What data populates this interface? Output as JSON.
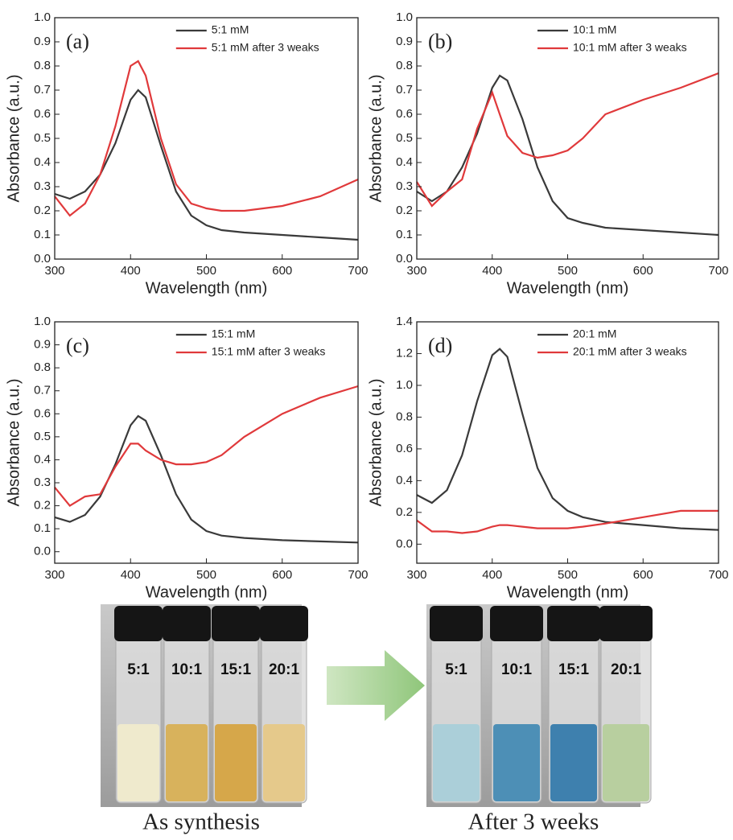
{
  "chart_data": [
    {
      "type": "line",
      "panel_label": "(a)",
      "x_label": "Wavelength (nm)",
      "y_label": "Absorbance (a.u.)",
      "x": [
        300,
        320,
        340,
        360,
        380,
        400,
        410,
        420,
        440,
        460,
        480,
        500,
        520,
        550,
        600,
        650,
        700
      ],
      "xlim": [
        300,
        700
      ],
      "xticks": [
        300,
        400,
        500,
        600,
        700
      ],
      "ylim": [
        0,
        1
      ],
      "yticks": [
        {
          "value": 0,
          "label": "0.0"
        },
        0.1,
        0.2,
        0.3,
        0.4,
        0.5,
        0.6,
        0.7,
        0.8,
        0.9,
        {
          "value": 1,
          "label": "1.0"
        }
      ],
      "series": [
        {
          "name": "5:1 mM",
          "color": "#3a3a3a",
          "values": [
            0.27,
            0.25,
            0.28,
            0.35,
            0.48,
            0.66,
            0.7,
            0.67,
            0.47,
            0.28,
            0.18,
            0.14,
            0.12,
            0.11,
            0.1,
            0.09,
            0.08
          ]
        },
        {
          "name": "5:1 mM after 3 weaks",
          "color": "#e0393b",
          "values": [
            0.26,
            0.18,
            0.23,
            0.35,
            0.55,
            0.8,
            0.82,
            0.76,
            0.5,
            0.31,
            0.23,
            0.21,
            0.2,
            0.2,
            0.22,
            0.26,
            0.33
          ]
        }
      ]
    },
    {
      "type": "line",
      "panel_label": "(b)",
      "x_label": "Wavelength (nm)",
      "y_label": "Absorbance (a.u.)",
      "x": [
        300,
        320,
        340,
        360,
        380,
        400,
        410,
        420,
        440,
        460,
        480,
        500,
        520,
        550,
        600,
        650,
        700
      ],
      "xlim": [
        300,
        700
      ],
      "xticks": [
        300,
        400,
        500,
        600,
        700
      ],
      "ylim": [
        0,
        1
      ],
      "yticks": [
        {
          "value": 0,
          "label": "0.0"
        },
        0.1,
        0.2,
        0.3,
        0.4,
        0.5,
        0.6,
        0.7,
        0.8,
        0.9,
        {
          "value": 1,
          "label": "1.0"
        }
      ],
      "series": [
        {
          "name": "10:1 mM",
          "color": "#3a3a3a",
          "values": [
            0.28,
            0.24,
            0.28,
            0.38,
            0.52,
            0.71,
            0.76,
            0.74,
            0.58,
            0.38,
            0.24,
            0.17,
            0.15,
            0.13,
            0.12,
            0.11,
            0.1
          ]
        },
        {
          "name": "10:1 mM after 3 weaks",
          "color": "#e0393b",
          "values": [
            0.32,
            0.22,
            0.28,
            0.33,
            0.54,
            0.69,
            0.6,
            0.51,
            0.44,
            0.42,
            0.43,
            0.45,
            0.5,
            0.6,
            0.66,
            0.71,
            0.77
          ]
        }
      ]
    },
    {
      "type": "line",
      "panel_label": "(c)",
      "x_label": "Wavelength (nm)",
      "y_label": "Absorbance (a.u.)",
      "x": [
        300,
        320,
        340,
        360,
        380,
        400,
        410,
        420,
        440,
        460,
        480,
        500,
        520,
        550,
        600,
        650,
        700
      ],
      "xlim": [
        300,
        700
      ],
      "xticks": [
        300,
        400,
        500,
        600,
        700
      ],
      "ylim": [
        -0.05,
        1
      ],
      "yticks": [
        {
          "value": 0,
          "label": "0.0"
        },
        0.1,
        0.2,
        0.3,
        0.4,
        0.5,
        0.6,
        0.7,
        0.8,
        0.9,
        {
          "value": 1,
          "label": "1.0"
        }
      ],
      "series": [
        {
          "name": "15:1 mM",
          "color": "#3a3a3a",
          "values": [
            0.15,
            0.13,
            0.16,
            0.24,
            0.38,
            0.55,
            0.59,
            0.57,
            0.42,
            0.25,
            0.14,
            0.09,
            0.07,
            0.06,
            0.05,
            0.045,
            0.04
          ]
        },
        {
          "name": "15:1 mM after 3 weaks",
          "color": "#e0393b",
          "values": [
            0.28,
            0.2,
            0.24,
            0.25,
            0.37,
            0.47,
            0.47,
            0.44,
            0.4,
            0.38,
            0.38,
            0.39,
            0.42,
            0.5,
            0.6,
            0.67,
            0.72
          ]
        }
      ]
    },
    {
      "type": "line",
      "panel_label": "(d)",
      "x_label": "Wavelength (nm)",
      "y_label": "Absorbance (a.u.)",
      "x": [
        300,
        320,
        340,
        360,
        380,
        400,
        410,
        420,
        440,
        460,
        480,
        500,
        520,
        550,
        600,
        650,
        700
      ],
      "xlim": [
        300,
        700
      ],
      "xticks": [
        300,
        400,
        500,
        600,
        700
      ],
      "ylim": [
        -0.12,
        1.4
      ],
      "yticks": [
        {
          "value": 0,
          "label": "0.0"
        },
        0.2,
        0.4,
        0.6,
        0.8,
        {
          "value": 1,
          "label": "1.0"
        },
        1.2,
        1.4
      ],
      "series": [
        {
          "name": "20:1 mM",
          "color": "#3a3a3a",
          "values": [
            0.31,
            0.26,
            0.34,
            0.56,
            0.9,
            1.19,
            1.23,
            1.18,
            0.82,
            0.48,
            0.29,
            0.21,
            0.17,
            0.14,
            0.12,
            0.1,
            0.09
          ]
        },
        {
          "name": "20:1 mM after 3 weaks",
          "color": "#e0393b",
          "values": [
            0.15,
            0.08,
            0.08,
            0.07,
            0.08,
            0.11,
            0.12,
            0.12,
            0.11,
            0.1,
            0.1,
            0.1,
            0.11,
            0.13,
            0.17,
            0.21,
            0.21
          ]
        }
      ]
    }
  ],
  "photos": [
    {
      "labels": [
        "5:1",
        "10:1",
        "15:1",
        "20:1"
      ],
      "caption": "As synthesis"
    },
    {
      "labels": [
        "5:1",
        "10:1",
        "15:1",
        "20:1"
      ],
      "caption": "After 3 weeks"
    }
  ]
}
